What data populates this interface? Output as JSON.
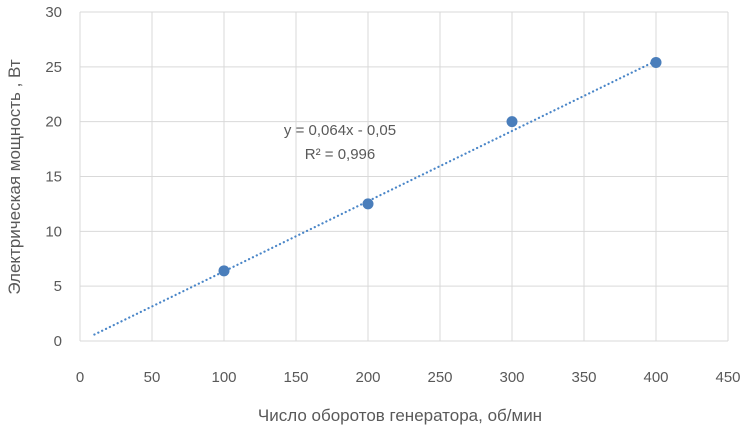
{
  "chart_data": {
    "type": "scatter",
    "title": "",
    "xlabel": "Число оборотов генератора,  об/мин",
    "ylabel": "Электрическая мощность ,  Вт",
    "xlim": [
      0,
      450
    ],
    "ylim": [
      0,
      30
    ],
    "x_ticks": [
      "0",
      "50",
      "100",
      "150",
      "200",
      "250",
      "300",
      "350",
      "400",
      "450"
    ],
    "y_ticks": [
      "0",
      "5",
      "10",
      "15",
      "20",
      "25",
      "30"
    ],
    "grid": true,
    "legend": "none",
    "points": [
      {
        "x": 100,
        "y": 6.4
      },
      {
        "x": 200,
        "y": 12.5
      },
      {
        "x": 300,
        "y": 20.0
      },
      {
        "x": 400,
        "y": 25.4
      }
    ],
    "trendline": {
      "type": "linear",
      "style": "dotted",
      "x_start": 10,
      "x_end": 400,
      "slope": 0.064,
      "intercept": -0.05
    },
    "annotations": {
      "equation": "y = 0,064x - 0,05",
      "r_squared": "R² = 0,996"
    },
    "colors": {
      "marker": "#4a7ebb",
      "trendline": "#4a86c8",
      "grid": "#d9d9d9",
      "text": "#595959"
    }
  }
}
